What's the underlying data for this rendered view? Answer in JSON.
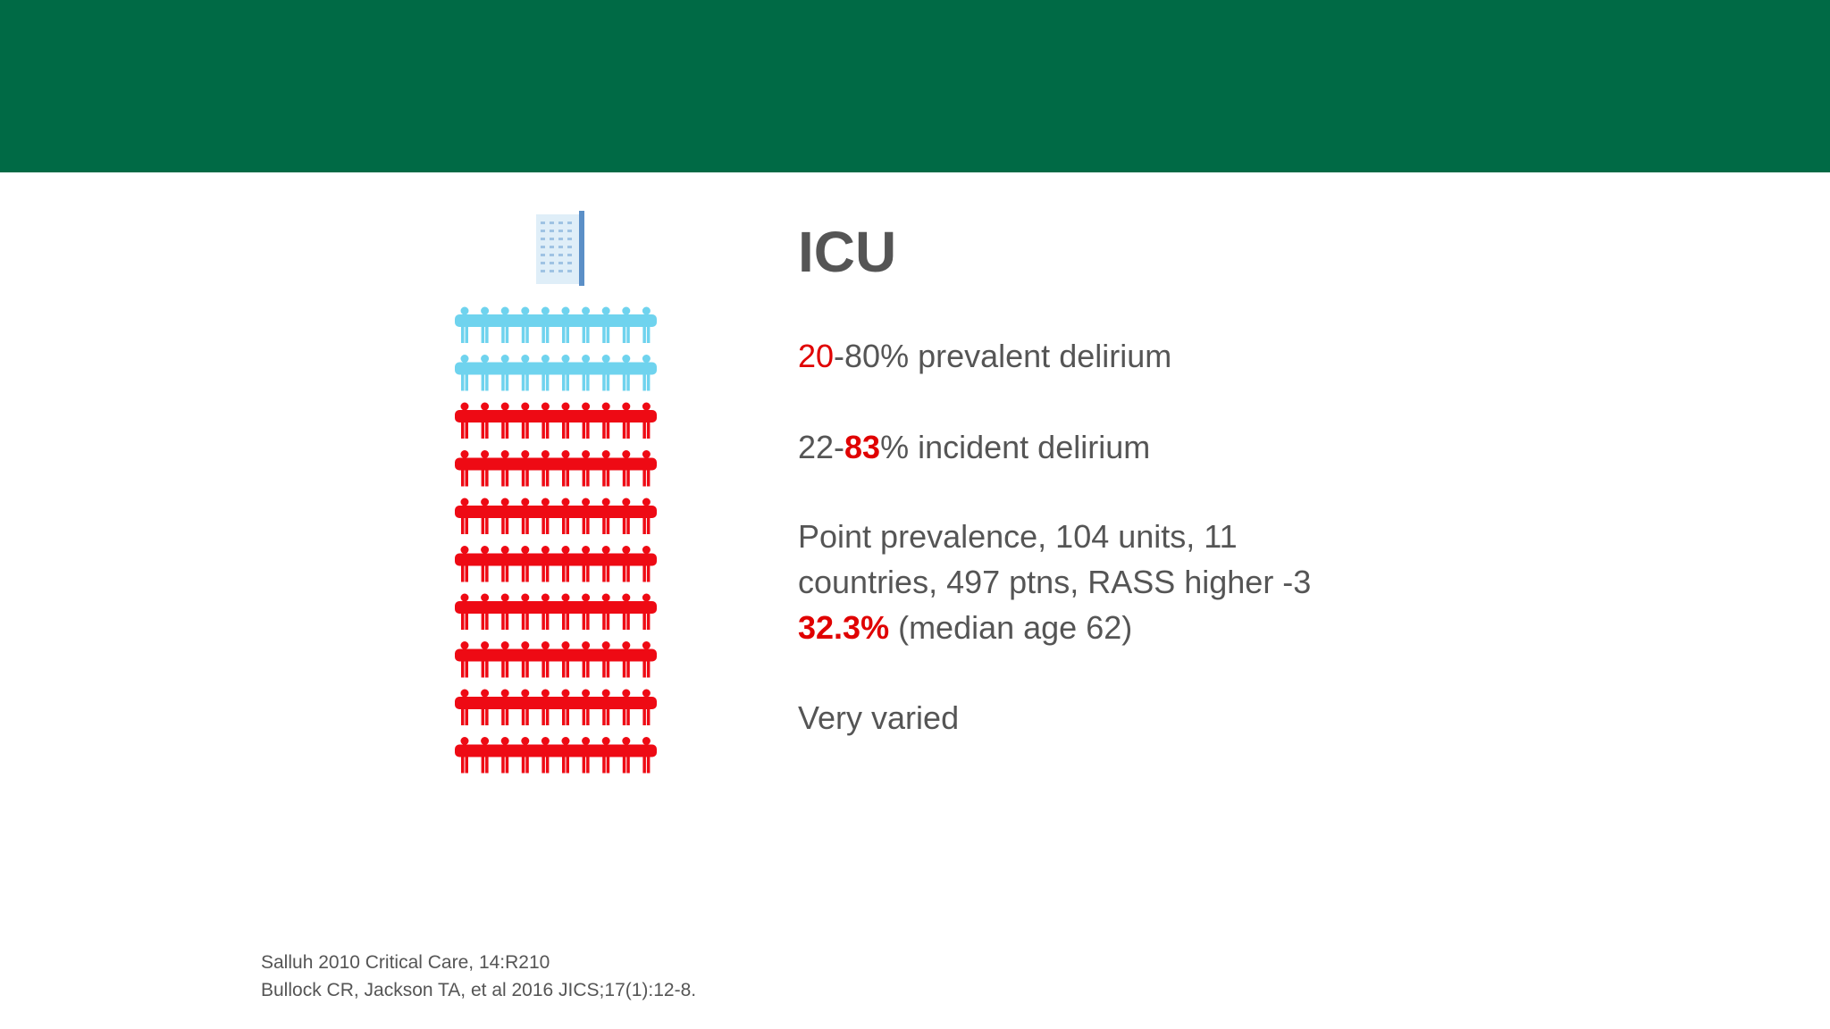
{
  "slide": {
    "title": "ICU",
    "lines": [
      [
        {
          "text": "20",
          "color": "#e00000"
        },
        {
          "text": "-80% prevalent delirium"
        }
      ],
      [
        {
          "text": "22-"
        },
        {
          "text": "83",
          "color": "#e00000",
          "bold": true
        },
        {
          "text": "% incident delirium"
        }
      ],
      [
        {
          "text": "Point prevalence, 104 units, 11"
        }
      ],
      [
        {
          "text": "countries, 497 ptns, RASS higher -3"
        }
      ],
      [
        {
          "text": "32.3%",
          "color": "#e00000",
          "bold": true
        },
        {
          "text": " (median age 62)"
        }
      ],
      [
        {
          "text": "Very varied"
        }
      ]
    ],
    "references": [
      "Salluh 2010 Critical Care, 14:R210",
      "Bullock CR, Jackson TA, et al 2016 JICS;17(1):12-8."
    ]
  }
}
